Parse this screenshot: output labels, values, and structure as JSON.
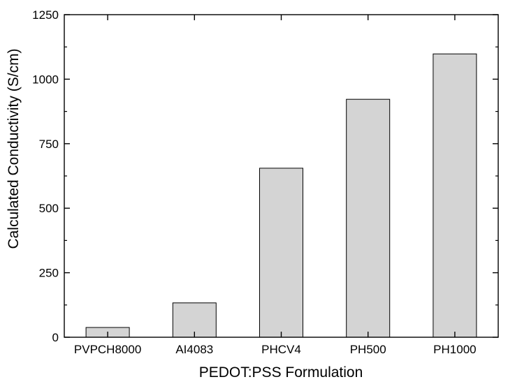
{
  "chart_data": {
    "type": "bar",
    "title": "",
    "xlabel": "PEDOT:PSS Formulation",
    "ylabel": "Calculated Conductivity (S/cm)",
    "categories": [
      "PVPCH8000",
      "AI4083",
      "PHCV4",
      "PH500",
      "PH1000"
    ],
    "values": [
      38,
      133,
      655,
      922,
      1098
    ],
    "ylim": [
      0,
      1250
    ],
    "yticks": [
      0,
      250,
      500,
      750,
      1000,
      1250
    ],
    "grid": false,
    "legend": "none",
    "colors": {
      "bar_fill": "#d4d4d4",
      "bar_stroke": "#000000",
      "axis": "#000000"
    }
  }
}
